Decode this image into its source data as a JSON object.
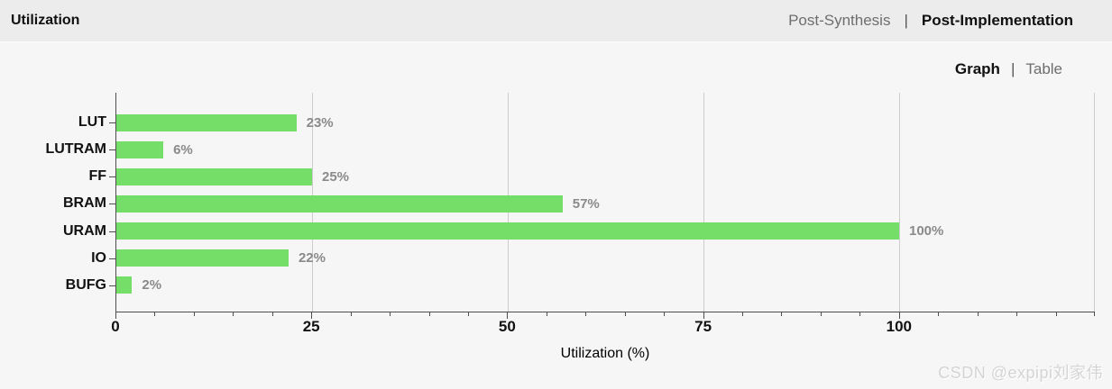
{
  "header": {
    "title": "Utilization",
    "tabs": [
      {
        "label": "Post-Synthesis",
        "active": false
      },
      {
        "label": "Post-Implementation",
        "active": true
      }
    ],
    "separator": "|"
  },
  "view_toggle": {
    "options": [
      {
        "label": "Graph",
        "active": true
      },
      {
        "label": "Table",
        "active": false
      }
    ],
    "separator": "|"
  },
  "chart_data": {
    "type": "bar",
    "orientation": "horizontal",
    "categories": [
      "LUT",
      "LUTRAM",
      "FF",
      "BRAM",
      "URAM",
      "IO",
      "BUFG"
    ],
    "values": [
      23,
      6,
      25,
      57,
      100,
      22,
      2
    ],
    "value_labels": [
      "23%",
      "6%",
      "25%",
      "57%",
      "100%",
      "22%",
      "2%"
    ],
    "xlabel": "Utilization (%)",
    "xlim": [
      0,
      125
    ],
    "xticks": [
      0,
      25,
      50,
      75,
      100
    ],
    "minor_tick_step": 5,
    "grid": true,
    "legend": "none",
    "bar_color": "#74de68"
  },
  "colors": {
    "header_bg": "#ececec",
    "body_bg": "#f6f6f6",
    "bar": "#74de68",
    "gridline": "#cccccc",
    "axis": "#4d4d4d",
    "value_label": "#8a8a8a",
    "inactive_text": "#6e6e6e",
    "active_text": "#111111"
  },
  "watermark": "CSDN @expipi刘家伟"
}
